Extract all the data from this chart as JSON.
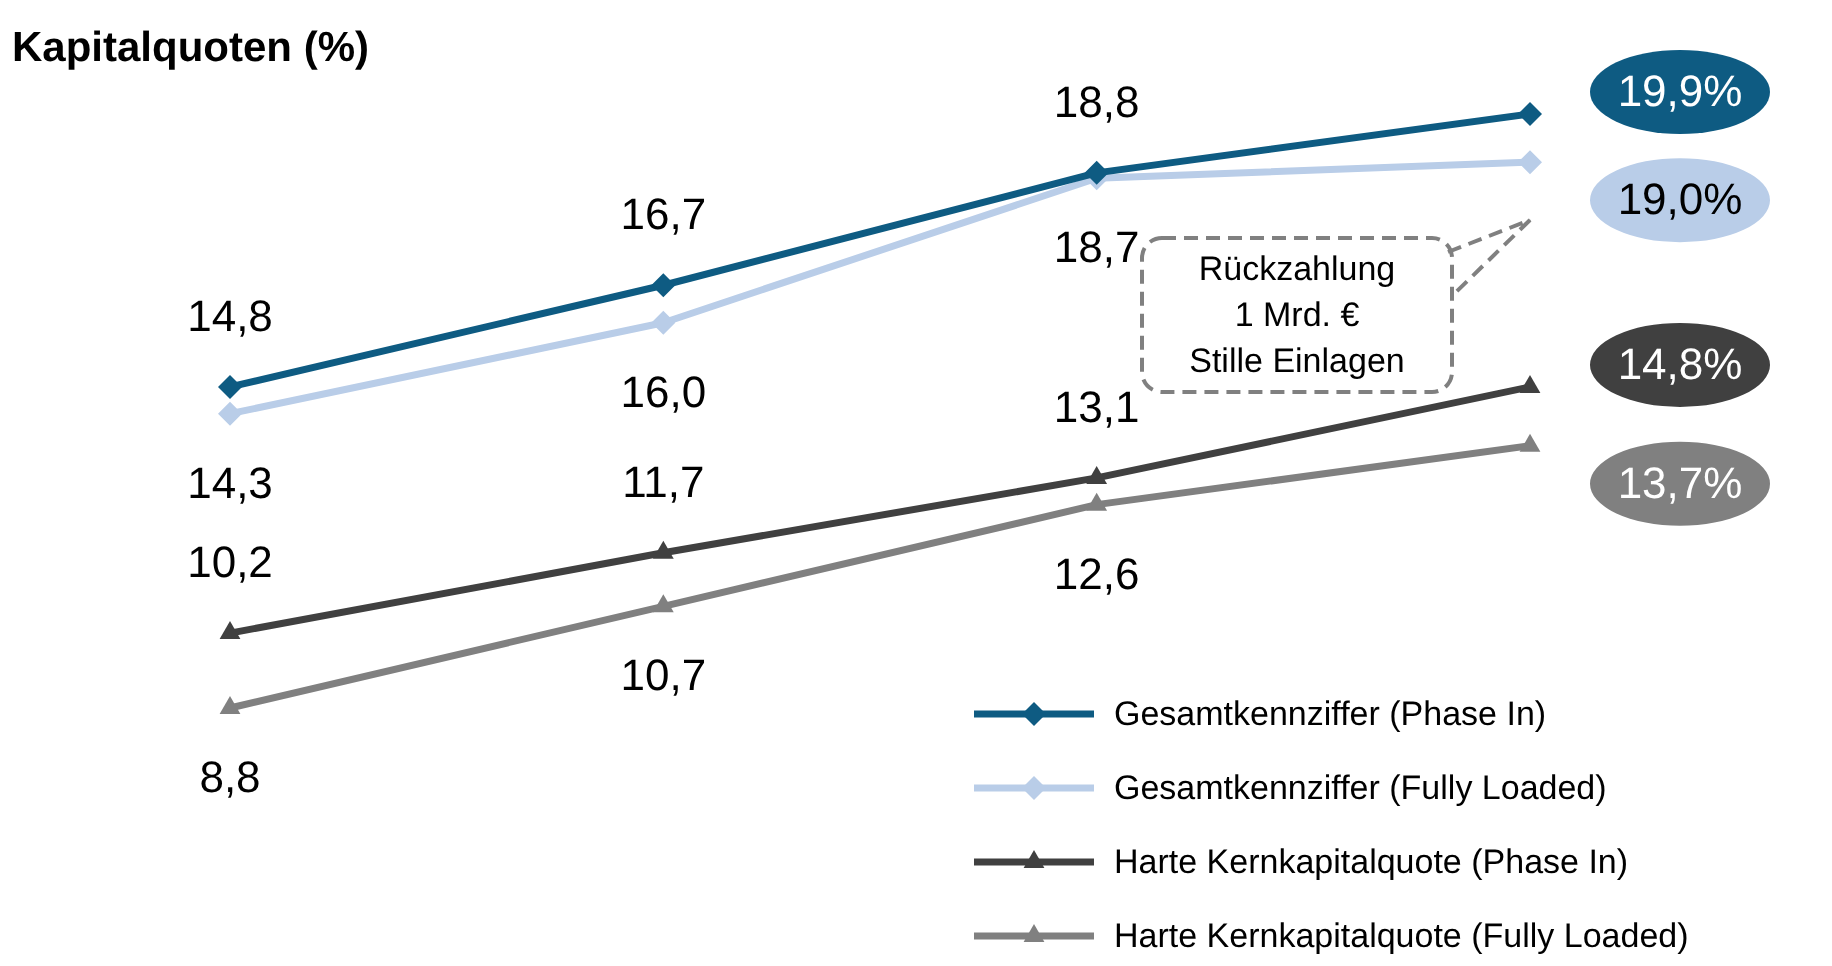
{
  "chart_data": {
    "type": "line",
    "title": "Kapitalquoten (%)",
    "categories": [
      null,
      null,
      null,
      null
    ],
    "series": [
      {
        "name": "Gesamtkennziffer (Phase In)",
        "color": "#0e5b82",
        "marker": "diamond",
        "values": [
          14.8,
          16.7,
          18.8,
          19.9
        ],
        "value_labels": [
          "14,8",
          "16,7",
          "18,8",
          "19,9%"
        ]
      },
      {
        "name": "Gesamtkennziffer (Fully Loaded)",
        "color": "#b9cde8",
        "marker": "diamond",
        "values": [
          14.3,
          16.0,
          18.7,
          19.0
        ],
        "value_labels": [
          "14,3",
          "16,0",
          "18,7",
          "19,0%"
        ]
      },
      {
        "name": "Harte Kernkapitalquote (Phase In)",
        "color": "#404040",
        "marker": "triangle",
        "values": [
          10.2,
          11.7,
          13.1,
          14.8
        ],
        "value_labels": [
          "10,2",
          "11,7",
          "13,1",
          "14,8%"
        ]
      },
      {
        "name": "Harte Kernkapitalquote (Fully Loaded)",
        "color": "#808080",
        "marker": "triangle",
        "values": [
          8.8,
          10.7,
          12.6,
          13.7
        ],
        "value_labels": [
          "8,8",
          "10,7",
          "12,6",
          "13,7%"
        ]
      }
    ],
    "annotations": [
      "Rückzahlung\n1 Mrd. €\nStille Einlagen"
    ],
    "legend": "bottom right",
    "grid": false,
    "tick_labels": false
  }
}
